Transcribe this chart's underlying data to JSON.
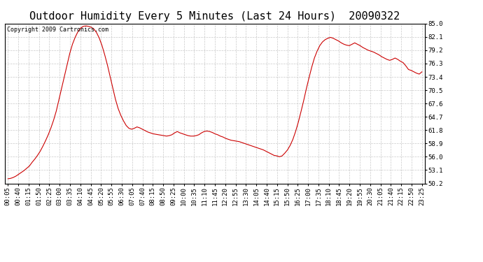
{
  "title": "Outdoor Humidity Every 5 Minutes (Last 24 Hours)  20090322",
  "copyright": "Copyright 2009 Cartronics.com",
  "yticks": [
    50.2,
    53.1,
    56.0,
    58.9,
    61.8,
    64.7,
    67.6,
    70.5,
    73.4,
    76.3,
    79.2,
    82.1,
    85.0
  ],
  "ylim": [
    50.2,
    85.0
  ],
  "line_color": "#cc0000",
  "bg_color": "#ffffff",
  "grid_color": "#bbbbbb",
  "title_fontsize": 11,
  "tick_fontsize": 6.5,
  "copyright_fontsize": 6,
  "x_labels": [
    "00:05",
    "00:40",
    "01:15",
    "01:50",
    "02:25",
    "03:00",
    "03:35",
    "04:10",
    "04:45",
    "05:20",
    "05:55",
    "06:30",
    "07:05",
    "07:40",
    "08:15",
    "08:50",
    "09:25",
    "10:00",
    "10:35",
    "11:10",
    "11:45",
    "12:20",
    "12:55",
    "13:30",
    "14:05",
    "14:40",
    "15:15",
    "15:50",
    "16:25",
    "17:00",
    "17:35",
    "18:10",
    "18:45",
    "19:20",
    "19:55",
    "20:30",
    "21:05",
    "21:40",
    "22:15",
    "22:50",
    "23:25"
  ],
  "humidity": [
    51.2,
    51.3,
    51.5,
    51.8,
    52.2,
    52.6,
    53.0,
    53.5,
    54.0,
    54.8,
    55.5,
    56.3,
    57.2,
    58.3,
    59.5,
    60.8,
    62.3,
    64.0,
    66.0,
    68.5,
    71.0,
    73.5,
    76.0,
    78.5,
    80.5,
    82.0,
    83.2,
    84.0,
    84.4,
    84.5,
    84.4,
    84.2,
    83.8,
    83.0,
    81.8,
    80.2,
    78.2,
    76.0,
    73.5,
    71.0,
    68.5,
    66.5,
    65.0,
    63.8,
    62.8,
    62.2,
    62.0,
    62.2,
    62.5,
    62.3,
    62.0,
    61.7,
    61.4,
    61.2,
    61.0,
    60.9,
    60.8,
    60.7,
    60.6,
    60.5,
    60.6,
    60.8,
    61.2,
    61.5,
    61.2,
    61.0,
    60.8,
    60.6,
    60.5,
    60.5,
    60.6,
    60.8,
    61.2,
    61.5,
    61.6,
    61.5,
    61.3,
    61.0,
    60.8,
    60.5,
    60.3,
    60.0,
    59.8,
    59.6,
    59.5,
    59.4,
    59.3,
    59.1,
    58.9,
    58.7,
    58.5,
    58.3,
    58.1,
    57.9,
    57.7,
    57.5,
    57.2,
    56.9,
    56.6,
    56.3,
    56.2,
    56.0,
    56.2,
    56.8,
    57.5,
    58.5,
    59.8,
    61.5,
    63.5,
    65.8,
    68.2,
    70.8,
    73.2,
    75.5,
    77.5,
    79.0,
    80.2,
    81.0,
    81.5,
    81.8,
    82.0,
    81.8,
    81.5,
    81.2,
    80.8,
    80.5,
    80.3,
    80.2,
    80.5,
    80.8,
    80.5,
    80.2,
    79.8,
    79.5,
    79.2,
    79.0,
    78.8,
    78.5,
    78.2,
    77.8,
    77.5,
    77.2,
    77.0,
    77.2,
    77.5,
    77.2,
    76.8,
    76.5,
    75.8,
    75.0,
    74.8,
    74.5,
    74.2,
    74.0,
    74.5
  ]
}
